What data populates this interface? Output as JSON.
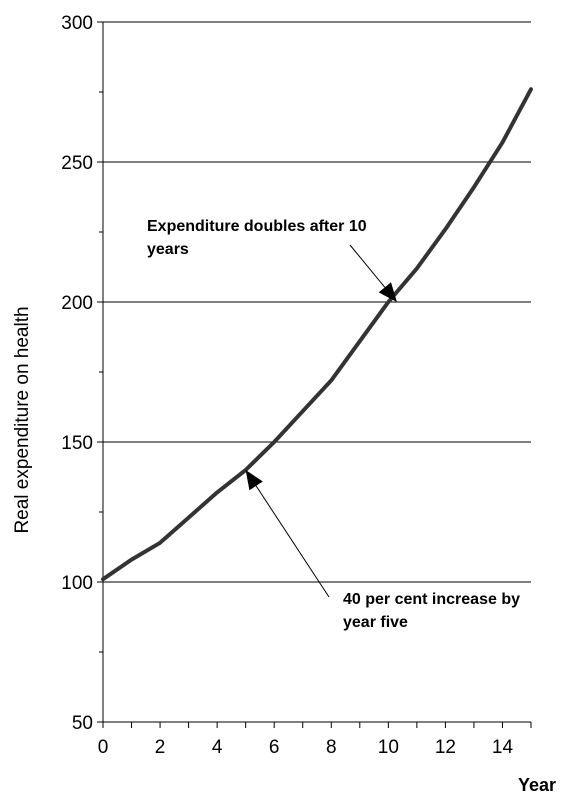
{
  "chart_data": {
    "type": "line",
    "title": "",
    "xlabel": "Year",
    "ylabel": "Real expenditure on health",
    "xlim": [
      0,
      15
    ],
    "ylim": [
      50,
      300
    ],
    "x_ticks": [
      0,
      2,
      4,
      6,
      8,
      10,
      12,
      14
    ],
    "y_ticks": [
      50,
      100,
      150,
      200,
      250,
      300
    ],
    "grid": "horizontal",
    "series": [
      {
        "x": [
          0,
          1,
          2,
          3,
          4,
          5,
          6,
          7,
          8,
          9,
          10,
          11,
          12,
          13,
          14,
          15
        ],
        "values": [
          101,
          108,
          114,
          123,
          132,
          140,
          150,
          161,
          172,
          186,
          200,
          212,
          226,
          241,
          257,
          276
        ],
        "color": "#333333"
      }
    ],
    "annotations": [
      {
        "lines": [
          "Expenditure doubles after 10",
          "years"
        ],
        "target": {
          "x": 10.3,
          "y": 200
        }
      },
      {
        "lines": [
          "40 per cent increase by",
          "year five"
        ],
        "target": {
          "x": 5,
          "y": 140
        }
      }
    ]
  }
}
